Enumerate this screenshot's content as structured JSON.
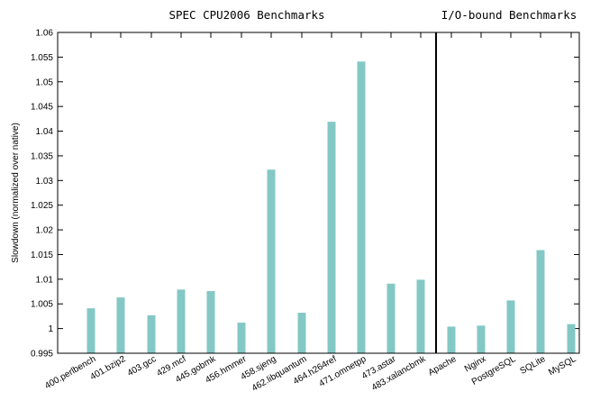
{
  "chart_data": {
    "type": "bar",
    "title": "",
    "xlabel": "",
    "ylabel": "Slowdown (normalized over native)",
    "ylim": [
      0.995,
      1.06
    ],
    "yticks": [
      0.995,
      1,
      1.005,
      1.01,
      1.015,
      1.02,
      1.025,
      1.03,
      1.035,
      1.04,
      1.045,
      1.05,
      1.055,
      1.06
    ],
    "ytick_labels": [
      "0.995",
      "1",
      "1.005",
      "1.01",
      "1.015",
      "1.02",
      "1.025",
      "1.03",
      "1.035",
      "1.04",
      "1.045",
      "1.05",
      "1.055",
      "1.06"
    ],
    "bar_color": "#84c8c5",
    "grid": false,
    "legend": "none",
    "groups": [
      {
        "label": "SPEC CPU2006 Benchmarks",
        "categories": [
          "400.perlbench",
          "401.bzip2",
          "403.gcc",
          "429.mcf",
          "445.gobmk",
          "456.hmmer",
          "458.sjeng",
          "462.libquantum",
          "464.h264ref",
          "471.omnetpp",
          "473.astar",
          "483.xalancbmk"
        ],
        "values": [
          1.0041,
          1.0063,
          1.0027,
          1.0079,
          1.0076,
          1.0012,
          1.0322,
          1.0032,
          1.0419,
          1.0541,
          1.0091,
          1.0099
        ]
      },
      {
        "label": "I/O-bound Benchmarks",
        "categories": [
          "Apache",
          "Nginx",
          "PostgreSQL",
          "SQLite",
          "MySQL"
        ],
        "values": [
          1.0004,
          1.0006,
          1.0057,
          1.0159,
          1.0009
        ]
      }
    ]
  }
}
